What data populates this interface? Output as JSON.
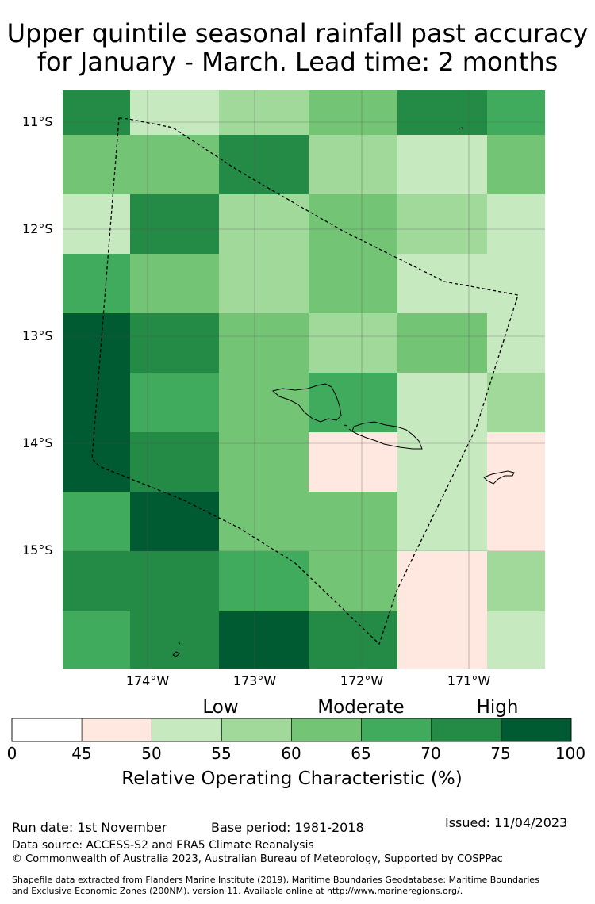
{
  "title_line1": "Upper quintile seasonal rainfall past accuracy",
  "title_line2": "for January - March. Lead time: 2 months",
  "map": {
    "lat_labels": [
      "11°S",
      "12°S",
      "13°S",
      "14°S",
      "15°S"
    ],
    "lon_labels": [
      "174°W",
      "173°W",
      "172°W",
      "171°W"
    ],
    "grid_categories": [
      [
        6,
        2,
        3,
        4,
        6,
        5
      ],
      [
        4,
        4,
        6,
        3,
        2,
        4
      ],
      [
        2,
        6,
        3,
        4,
        3,
        2
      ],
      [
        5,
        4,
        3,
        4,
        2,
        2
      ],
      [
        7,
        6,
        4,
        3,
        4,
        2
      ],
      [
        7,
        5,
        4,
        5,
        2,
        3
      ],
      [
        7,
        6,
        4,
        1,
        2,
        1
      ],
      [
        5,
        7,
        4,
        4,
        2,
        1
      ],
      [
        6,
        6,
        5,
        4,
        1,
        3
      ],
      [
        5,
        6,
        7,
        6,
        1,
        2
      ]
    ]
  },
  "legend": {
    "category_labels": [
      "Low",
      "Moderate",
      "High"
    ],
    "ticks": [
      "0",
      "45",
      "50",
      "55",
      "60",
      "65",
      "70",
      "75",
      "100"
    ],
    "colors": [
      "#ffffff",
      "#fee8df",
      "#c7e9c0",
      "#a1d99b",
      "#74c476",
      "#41ab5d",
      "#238b45",
      "#005a32"
    ],
    "title": "Relative Operating Characteristic (%)"
  },
  "footer": {
    "run_date": "Run date: 1st November",
    "base_period": "Base period: 1981-2018",
    "issued": "Issued: 11/04/2023",
    "data_source": "Data source: ACCESS-S2 and ERA5 Climate Reanalysis",
    "copyright": "© Commonwealth of Australia 2023, Australian Bureau of Meteorology, Supported by COSPPac",
    "shapefile_line1": "Shapefile data extracted from Flanders Marine Institute (2019), Maritime Boundaries Geodatabase: Maritime Boundaries",
    "shapefile_line2": "and Exclusive Economic Zones (200NM), version 11. Available online at http://www.marineregions.org/."
  }
}
